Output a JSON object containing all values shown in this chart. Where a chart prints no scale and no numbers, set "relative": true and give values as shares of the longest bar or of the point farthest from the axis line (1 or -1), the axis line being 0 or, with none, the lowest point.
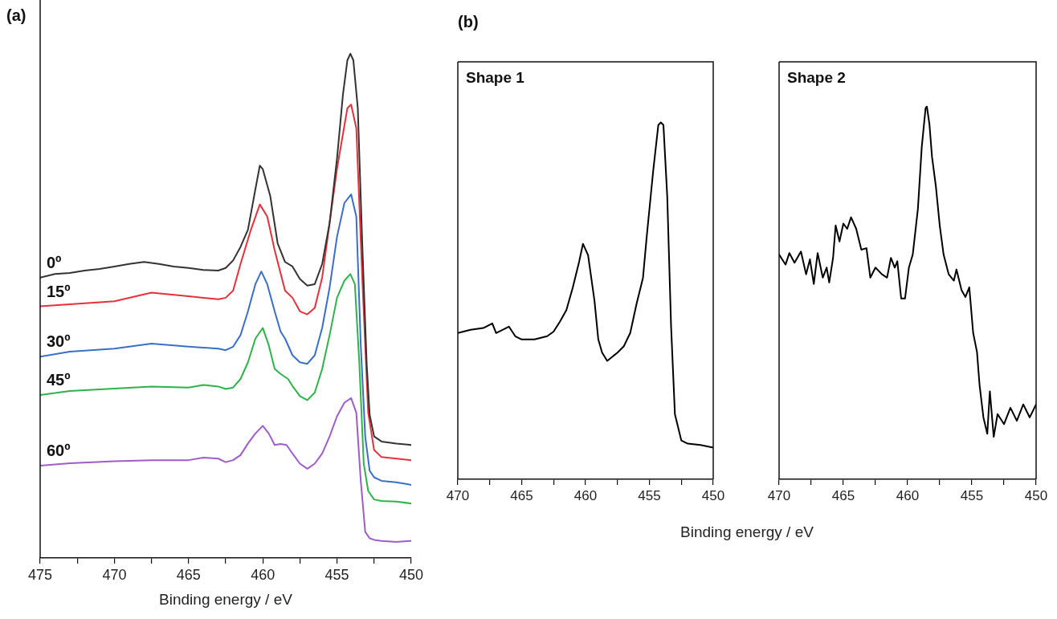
{
  "chart_data": [
    {
      "type": "line",
      "title": "(a)",
      "xlabel": "Binding energy / eV",
      "relative": true,
      "marker": "none",
      "xlim": [
        475,
        450
      ],
      "xticks": [
        475,
        {
          "value": 472.5,
          "label": null
        },
        470,
        {
          "value": 467.5,
          "label": null
        },
        465,
        {
          "value": 462.5,
          "label": null
        },
        460,
        {
          "value": 457.5,
          "label": null
        },
        455,
        {
          "value": 452.5,
          "label": null
        },
        450
      ],
      "series": [
        {
          "name": "0º",
          "color": "#333333",
          "x": [
            475,
            474,
            473,
            472,
            471,
            470,
            469,
            468,
            467,
            466,
            465,
            464,
            463,
            462.5,
            462,
            461.5,
            461,
            460.5,
            460.2,
            460,
            459.5,
            459,
            458.5,
            458,
            457.5,
            457,
            456.5,
            456,
            455.5,
            455,
            454.6,
            454.3,
            454.1,
            453.9,
            453.6,
            453.3,
            453,
            452.8,
            452.5,
            452,
            451,
            450
          ],
          "values": [
            0.556,
            0.563,
            0.565,
            0.57,
            0.573,
            0.578,
            0.583,
            0.587,
            0.583,
            0.578,
            0.575,
            0.571,
            0.57,
            0.575,
            0.59,
            0.617,
            0.651,
            0.731,
            0.778,
            0.771,
            0.718,
            0.624,
            0.587,
            0.578,
            0.553,
            0.54,
            0.543,
            0.583,
            0.664,
            0.792,
            0.919,
            0.987,
            1,
            0.987,
            0.892,
            0.624,
            0.384,
            0.284,
            0.241,
            0.231,
            0.227,
            0.224
          ]
        },
        {
          "name": "15º",
          "color": "#e8303a",
          "x": [
            475,
            470,
            467.5,
            465,
            463,
            462.5,
            462,
            461.5,
            460.8,
            460.2,
            459.7,
            459.2,
            458.5,
            458,
            457.5,
            457,
            456.5,
            456,
            455.5,
            455,
            454.3,
            454.05,
            453.7,
            453.3,
            452.9,
            452.5,
            452,
            451,
            450
          ],
          "values": [
            0.499,
            0.509,
            0.526,
            0.519,
            0.513,
            0.516,
            0.53,
            0.583,
            0.651,
            0.701,
            0.677,
            0.61,
            0.53,
            0.516,
            0.489,
            0.483,
            0.496,
            0.556,
            0.664,
            0.772,
            0.892,
            0.899,
            0.852,
            0.556,
            0.288,
            0.214,
            0.2,
            0.197,
            0.194
          ]
        },
        {
          "name": "30º",
          "color": "#3a6fc8",
          "x": [
            475,
            473,
            470,
            467.5,
            465,
            463,
            462.5,
            462,
            461.5,
            461,
            460.5,
            460.1,
            459.7,
            459.2,
            458.8,
            458.5,
            458,
            457.5,
            457,
            456.5,
            456,
            455.5,
            455,
            454.5,
            454.05,
            453.7,
            453.4,
            453.1,
            452.8,
            452.5,
            452,
            451,
            450
          ],
          "values": [
            0.399,
            0.409,
            0.415,
            0.425,
            0.419,
            0.415,
            0.412,
            0.419,
            0.442,
            0.489,
            0.543,
            0.568,
            0.543,
            0.489,
            0.449,
            0.435,
            0.402,
            0.388,
            0.385,
            0.402,
            0.456,
            0.536,
            0.637,
            0.704,
            0.721,
            0.677,
            0.422,
            0.241,
            0.173,
            0.16,
            0.153,
            0.15,
            0.145
          ]
        },
        {
          "name": "45º",
          "color": "#2db34a",
          "x": [
            475,
            473,
            470,
            467.5,
            465,
            464,
            463,
            462.5,
            462,
            461.5,
            461,
            460.5,
            460,
            459.6,
            459.2,
            458.8,
            458.3,
            458,
            457.5,
            457,
            456.5,
            456,
            455.5,
            455,
            454.5,
            454.1,
            453.8,
            453.5,
            453.2,
            452.9,
            452.5,
            452,
            451,
            450
          ],
          "values": [
            0.323,
            0.331,
            0.336,
            0.34,
            0.338,
            0.343,
            0.34,
            0.335,
            0.338,
            0.355,
            0.388,
            0.435,
            0.456,
            0.422,
            0.375,
            0.365,
            0.355,
            0.341,
            0.321,
            0.313,
            0.328,
            0.375,
            0.442,
            0.516,
            0.55,
            0.563,
            0.543,
            0.388,
            0.187,
            0.133,
            0.116,
            0.113,
            0.112,
            0.108
          ]
        },
        {
          "name": "60º",
          "color": "#a05cc8",
          "x": [
            475,
            473,
            470,
            467.5,
            465,
            464,
            463,
            462.5,
            462,
            461.5,
            461,
            460.5,
            460,
            459.6,
            459.2,
            458.8,
            458.4,
            458,
            457.5,
            457,
            456.5,
            456,
            455.5,
            455,
            454.5,
            454.05,
            453.7,
            453.4,
            453.1,
            452.8,
            452.5,
            452,
            451,
            450
          ],
          "values": [
            0.183,
            0.188,
            0.192,
            0.194,
            0.194,
            0.199,
            0.197,
            0.19,
            0.194,
            0.204,
            0.227,
            0.247,
            0.262,
            0.247,
            0.224,
            0.226,
            0.224,
            0.207,
            0.187,
            0.177,
            0.187,
            0.207,
            0.241,
            0.281,
            0.308,
            0.317,
            0.288,
            0.153,
            0.052,
            0.039,
            0.036,
            0.034,
            0.032,
            0.034
          ]
        }
      ]
    },
    {
      "type": "line",
      "title": "(b)",
      "subtitle": "Shape 1",
      "xlabel": "Binding energy / eV",
      "relative": true,
      "marker": "none",
      "xlim": [
        470,
        450
      ],
      "xticks": [
        470,
        {
          "value": 467.5,
          "label": null
        },
        465,
        {
          "value": 462.5,
          "label": null
        },
        460,
        {
          "value": 457.5,
          "label": null
        },
        455,
        {
          "value": 452.5,
          "label": null
        },
        450
      ],
      "series": [
        {
          "color": "#000000",
          "x": [
            470,
            469,
            468,
            467.3,
            467,
            466,
            465.5,
            465,
            464,
            463,
            462.5,
            462,
            461.5,
            461,
            460.5,
            460.2,
            459.8,
            459.3,
            459,
            458.7,
            458.3,
            457.5,
            457,
            456.5,
            456,
            455.5,
            455.2,
            454.7,
            454.3,
            454.1,
            453.9,
            453.6,
            453.3,
            453,
            452.5,
            452,
            451,
            450
          ],
          "values": [
            0.41,
            0.419,
            0.424,
            0.437,
            0.41,
            0.428,
            0.401,
            0.392,
            0.392,
            0.401,
            0.414,
            0.442,
            0.474,
            0.537,
            0.61,
            0.66,
            0.628,
            0.501,
            0.392,
            0.355,
            0.332,
            0.355,
            0.373,
            0.41,
            0.492,
            0.565,
            0.683,
            0.865,
            0.993,
            1,
            0.993,
            0.792,
            0.428,
            0.182,
            0.109,
            0.1,
            0.096,
            0.089
          ]
        }
      ]
    },
    {
      "type": "line",
      "subtitle": "Shape 2",
      "relative": true,
      "marker": "none",
      "xlim": [
        470,
        450
      ],
      "xticks": [
        470,
        {
          "value": 467.5,
          "label": null
        },
        465,
        {
          "value": 462.5,
          "label": null
        },
        460,
        {
          "value": 457.5,
          "label": null
        },
        455,
        {
          "value": 452.5,
          "label": null
        },
        450
      ],
      "series": [
        {
          "color": "#000000",
          "x": [
            470,
            469.5,
            469.2,
            468.8,
            468.3,
            467.9,
            467.6,
            467.3,
            467,
            466.6,
            466.3,
            466.1,
            465.8,
            465.6,
            465.3,
            465,
            464.7,
            464.4,
            464,
            463.6,
            463.2,
            462.9,
            462.5,
            462,
            461.6,
            461.3,
            461,
            460.8,
            460.5,
            460.2,
            459.9,
            459.6,
            459.2,
            458.9,
            458.6,
            458.5,
            458.3,
            458.1,
            457.8,
            457.5,
            457.2,
            456.8,
            456.4,
            456.2,
            455.8,
            455.5,
            455.2,
            454.9,
            454.6,
            454.4,
            454.1,
            453.8,
            453.6,
            453.3,
            453,
            452.5,
            452,
            451.5,
            451,
            450.5,
            450
          ],
          "values": [
            0.603,
            0.576,
            0.607,
            0.581,
            0.611,
            0.55,
            0.59,
            0.524,
            0.607,
            0.541,
            0.568,
            0.528,
            0.594,
            0.681,
            0.638,
            0.686,
            0.672,
            0.703,
            0.672,
            0.616,
            0.62,
            0.541,
            0.568,
            0.55,
            0.541,
            0.594,
            0.568,
            0.585,
            0.485,
            0.485,
            0.568,
            0.603,
            0.725,
            0.891,
            0.996,
            1,
            0.952,
            0.865,
            0.786,
            0.681,
            0.603,
            0.55,
            0.533,
            0.563,
            0.507,
            0.489,
            0.515,
            0.393,
            0.341,
            0.253,
            0.166,
            0.122,
            0.236,
            0.114,
            0.175,
            0.148,
            0.192,
            0.157,
            0.201,
            0.166,
            0.201
          ]
        }
      ]
    }
  ]
}
